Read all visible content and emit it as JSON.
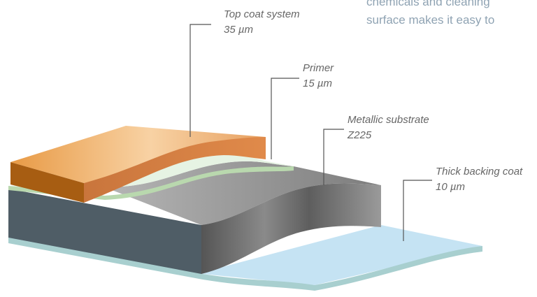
{
  "intro_text": [
    "chemicals and cleaning",
    "surface makes it easy to"
  ],
  "layers": [
    {
      "name": "Top coat system",
      "thickness": "35 µm"
    },
    {
      "name": "Primer",
      "thickness": "15 µm"
    },
    {
      "name": "Metallic substrate",
      "thickness": "Z225"
    },
    {
      "name": "Thick backing coat",
      "thickness": "10 µm"
    }
  ]
}
